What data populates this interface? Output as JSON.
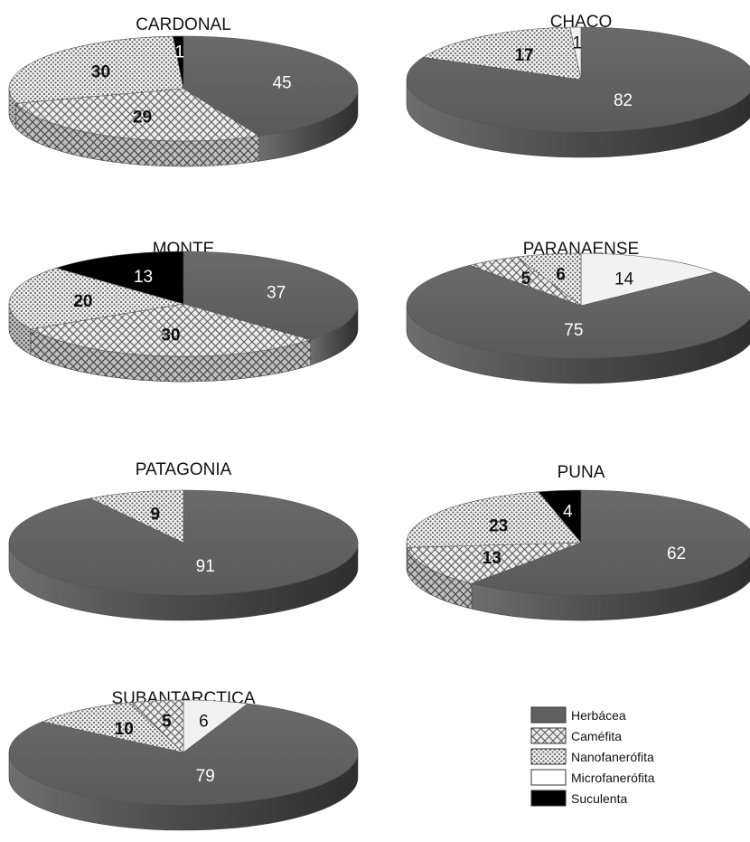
{
  "colors": {
    "Herbácea": "#5f5f5f",
    "Caméfita": "#d9d9d9",
    "Nanofanerófita": "#e6e6e6",
    "Microfanerófita": "#f2f2f2",
    "Suculenta": "#000000"
  },
  "legend": {
    "position": "bottom-right",
    "items": [
      {
        "name": "Herbácea",
        "label": "Herbácea",
        "pattern": "solid-gray"
      },
      {
        "name": "Caméfita",
        "label": "Caméfita",
        "pattern": "cross-hatch"
      },
      {
        "name": "Nanofanerófita",
        "label": "Nanofanerófita",
        "pattern": "dotted"
      },
      {
        "name": "Microfanerófita",
        "label": "Microfanerófita",
        "pattern": "white"
      },
      {
        "name": "Suculenta",
        "label": "Suculenta",
        "pattern": "solid-black"
      }
    ]
  },
  "chart_data": [
    {
      "type": "pie",
      "title": "CARDONAL",
      "slices": [
        {
          "category": "Herbácea",
          "value": 45
        },
        {
          "category": "Caméfita",
          "value": 29
        },
        {
          "category": "Nanofanerófita",
          "value": 30
        },
        {
          "category": "Suculenta",
          "value": 1
        }
      ]
    },
    {
      "type": "pie",
      "title": "CHACO",
      "slices": [
        {
          "category": "Herbácea",
          "value": 82
        },
        {
          "category": "Nanofanerófita",
          "value": 17
        },
        {
          "category": "Microfanerófita",
          "value": 1
        }
      ]
    },
    {
      "type": "pie",
      "title": "MONTE",
      "slices": [
        {
          "category": "Herbácea",
          "value": 37
        },
        {
          "category": "Caméfita",
          "value": 30
        },
        {
          "category": "Nanofanerófita",
          "value": 20
        },
        {
          "category": "Suculenta",
          "value": 13
        }
      ]
    },
    {
      "type": "pie",
      "title": "PARANAENSE",
      "slices": [
        {
          "category": "Microfanerófita",
          "value": 14
        },
        {
          "category": "Herbácea",
          "value": 75
        },
        {
          "category": "Caméfita",
          "value": 5
        },
        {
          "category": "Nanofanerófita",
          "value": 6
        }
      ]
    },
    {
      "type": "pie",
      "title": "PATAGONIA",
      "slices": [
        {
          "category": "Herbácea",
          "value": 91
        },
        {
          "category": "Nanofanerófita",
          "value": 9
        }
      ]
    },
    {
      "type": "pie",
      "title": "PUNA",
      "slices": [
        {
          "category": "Herbácea",
          "value": 62
        },
        {
          "category": "Caméfita",
          "value": 13
        },
        {
          "category": "Nanofanerófita",
          "value": 23
        },
        {
          "category": "Suculenta",
          "value": 4
        }
      ]
    },
    {
      "type": "pie",
      "title": "SUBANTARCTICA",
      "slices": [
        {
          "category": "Microfanerófita",
          "value": 6
        },
        {
          "category": "Herbácea",
          "value": 79
        },
        {
          "category": "Nanofanerófita",
          "value": 10
        },
        {
          "category": "Caméfita",
          "value": 5
        }
      ]
    }
  ]
}
